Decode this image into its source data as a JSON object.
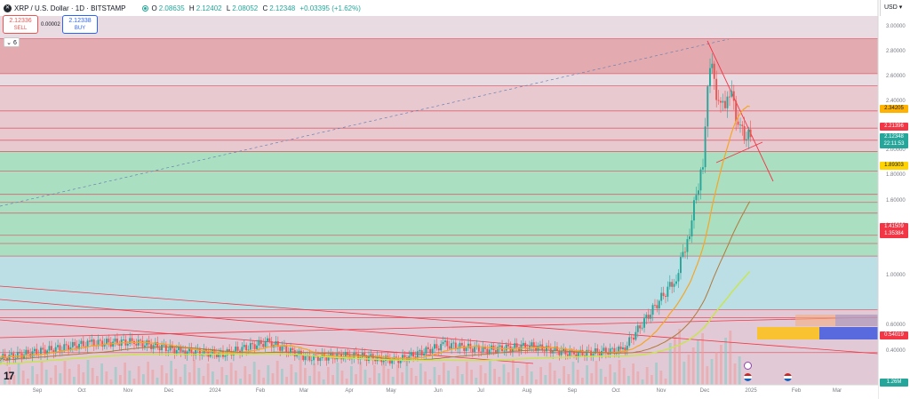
{
  "header": {
    "title": "XRP / U.S. Dollar · 1D · BITSTAMP",
    "open_label": "O",
    "open": "2.08635",
    "high_label": "H",
    "high": "2.12402",
    "low_label": "L",
    "low": "2.08052",
    "close_label": "C",
    "close": "2.12348",
    "change": "+0.03395 (+1.62%)"
  },
  "trade": {
    "sell_price": "2.12336",
    "sell_label": "SELL",
    "spread": "0.00002",
    "buy_price": "2.12338",
    "buy_label": "BUY"
  },
  "indicator_toggle": "6",
  "currency": "USD",
  "colors": {
    "up": "#26a69a",
    "down": "#ef5350",
    "trend": "#f23645",
    "ma_orange": "#f5a623",
    "ma_yellow": "#c8e64a",
    "ma_brown": "#b07a3a"
  },
  "y_axis": {
    "labels": [
      "3.00000",
      "2.80000",
      "2.60000",
      "2.40000",
      "2.00000",
      "1.80000",
      "1.60000",
      "1.40000",
      "1.00000",
      "0.60000",
      "0.40000"
    ]
  },
  "price_tags": [
    {
      "value": "2.34205",
      "color": "#ffb300",
      "text_dark": true
    },
    {
      "value": "2.21396",
      "color": "#f23645",
      "text_dark": false
    },
    {
      "value": "2.12348",
      "color": "#26a69a",
      "text_dark": false
    },
    {
      "value": "22:11:53",
      "color": "#26a69a",
      "text_dark": false
    },
    {
      "value": "1.89303",
      "color": "#ffd400",
      "text_dark": true
    },
    {
      "value": "1.41509",
      "color": "#f23645",
      "text_dark": false
    },
    {
      "value": "1.35384",
      "color": "#f23645",
      "text_dark": false
    },
    {
      "value": "0.54019",
      "color": "#f23645",
      "text_dark": false
    },
    {
      "value": "1.26M",
      "color": "#26a69a",
      "text_dark": false
    }
  ],
  "x_axis": {
    "labels": [
      "Sep",
      "Oct",
      "Nov",
      "Dec",
      "2024",
      "Feb",
      "Mar",
      "Apr",
      "May",
      "Jun",
      "Jul",
      "Aug",
      "Sep",
      "Oct",
      "Nov",
      "Dec",
      "2025",
      "Feb",
      "Mar"
    ]
  },
  "logo": "17",
  "chart_data": {
    "type": "candlestick",
    "symbol": "XRP / U.S. Dollar",
    "interval": "1D",
    "exchange": "BITSTAMP",
    "ylim": [
      0.3,
      3.05
    ],
    "x": [
      "2023-09",
      "2023-10",
      "2023-11",
      "2023-12",
      "2024-01",
      "2024-02",
      "2024-03",
      "2024-04",
      "2024-05",
      "2024-06",
      "2024-07",
      "2024-08",
      "2024-09",
      "2024-10",
      "2024-11",
      "2024-11-15",
      "2024-11-22",
      "2024-12-01",
      "2024-12-04",
      "2024-12-10",
      "2024-12-17",
      "2024-12-24",
      "2024-12-30"
    ],
    "close": [
      0.5,
      0.55,
      0.61,
      0.62,
      0.55,
      0.53,
      0.62,
      0.5,
      0.52,
      0.48,
      0.6,
      0.56,
      0.59,
      0.53,
      0.56,
      1.1,
      1.45,
      1.98,
      2.7,
      2.35,
      2.5,
      2.2,
      2.12
    ],
    "horizontal_levels": [
      2.88,
      2.62,
      2.53,
      2.34205,
      2.21396,
      2.12348,
      2.04,
      1.89303,
      1.72,
      1.66,
      1.58,
      1.41509,
      1.35384,
      1.26,
      0.86,
      0.8,
      0.54019
    ],
    "zones": [
      {
        "from": 2.62,
        "to": 2.88
      },
      {
        "from": 2.04,
        "to": 2.53
      },
      {
        "from": 1.26,
        "to": 2.04
      },
      {
        "from": 0.86,
        "to": 1.26
      },
      {
        "from": 0.3,
        "to": 0.86
      }
    ],
    "volume_last": "1.26M"
  }
}
